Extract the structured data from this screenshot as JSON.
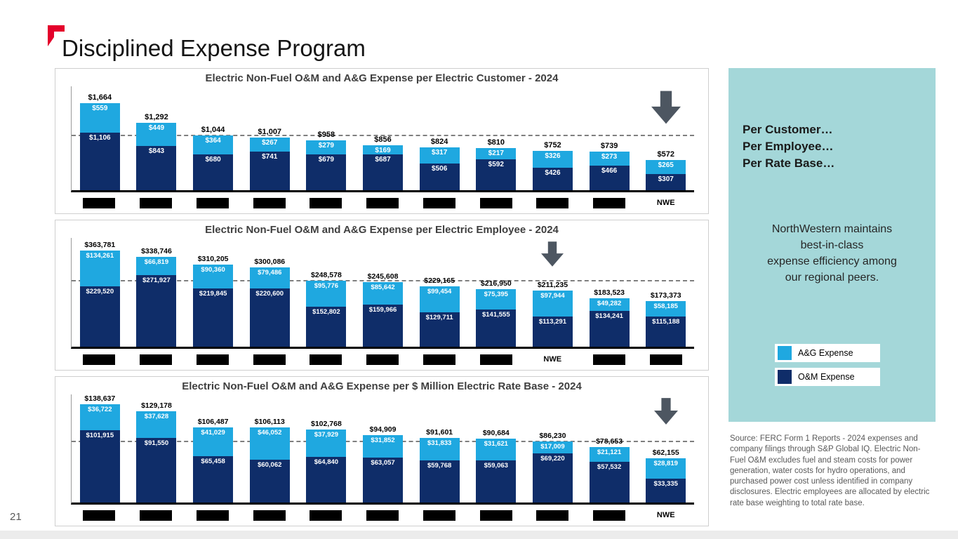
{
  "page": {
    "title": "Disciplined Expense Program",
    "slide_number": "21"
  },
  "sidebar": {
    "headline_lines": [
      "Per Customer…",
      "Per Employee…",
      "Per Rate Base…"
    ],
    "body_lines": [
      "NorthWestern maintains",
      "best-in-class",
      "expense efficiency among",
      "our regional peers."
    ],
    "legend": [
      {
        "label": "A&G Expense",
        "color_key": "ag"
      },
      {
        "label": "O&M Expense",
        "color_key": "om"
      }
    ]
  },
  "source_note": "Source:  FERC Form 1 Reports - 2024 expenses and company filings through S&P Global IQ. Electric Non-Fuel O&M excludes fuel and steam costs for power generation, water costs for hydro operations, and purchased power cost unless identified in company disclosures. Electric employees are allocated by electric rate base weighting to total rate base.",
  "colors": {
    "ag": "#1fa8e0",
    "om": "#0f2d69",
    "arrow": "#4d5661",
    "dashed": "#7f7f7f",
    "sidebar_bg": "#a4d7d9",
    "accent_red": "#e4002b"
  },
  "chart_data": [
    {
      "type": "bar",
      "stacked": true,
      "title": "Electric Non-Fuel O&M and A&G Expense per Electric Customer - 2024",
      "ylim": [
        0,
        1664
      ],
      "dashed_line_value": 1040,
      "arrow_index": 10,
      "categories": [
        "",
        "",
        "",
        "",
        "",
        "",
        "",
        "",
        "",
        "",
        "NWE"
      ],
      "series": [
        {
          "name": "O&M Expense",
          "values": [
            1106,
            843,
            680,
            741,
            679,
            687,
            506,
            592,
            426,
            466,
            307
          ]
        },
        {
          "name": "A&G Expense",
          "values": [
            559,
            449,
            364,
            267,
            279,
            169,
            317,
            217,
            326,
            273,
            265
          ]
        }
      ],
      "totals": [
        1664,
        1292,
        1044,
        1007,
        958,
        856,
        824,
        810,
        752,
        739,
        572
      ]
    },
    {
      "type": "bar",
      "stacked": true,
      "title": "Electric Non-Fuel O&M and A&G Expense per Electric Employee - 2024",
      "ylim": [
        0,
        363781
      ],
      "dashed_line_value": 246500,
      "arrow_index": 8,
      "categories": [
        "",
        "",
        "",
        "",
        "",
        "",
        "",
        "",
        "NWE",
        "",
        ""
      ],
      "series": [
        {
          "name": "O&M Expense",
          "values": [
            229520,
            271927,
            219845,
            220600,
            152802,
            159966,
            129711,
            141555,
            113291,
            134241,
            115188
          ]
        },
        {
          "name": "A&G Expense",
          "values": [
            134261,
            66819,
            90360,
            79486,
            95776,
            85642,
            99454,
            75395,
            97944,
            49282,
            58185
          ]
        }
      ],
      "totals": [
        363781,
        338746,
        310205,
        300086,
        248578,
        245608,
        229165,
        216950,
        211235,
        183523,
        173373
      ]
    },
    {
      "type": "bar",
      "stacked": true,
      "title": "Electric Non-Fuel O&M and A&G Expense per $ Million Electric Rate Base - 2024",
      "ylim": [
        0,
        138637
      ],
      "dashed_line_value": 85500,
      "arrow_index": 10,
      "categories": [
        "",
        "",
        "",
        "",
        "",
        "",
        "",
        "",
        "",
        "",
        "NWE"
      ],
      "series": [
        {
          "name": "O&M Expense",
          "values": [
            101915,
            91550,
            65458,
            60062,
            64840,
            63057,
            59768,
            59063,
            69220,
            57532,
            33335
          ]
        },
        {
          "name": "A&G Expense",
          "values": [
            36722,
            37628,
            41029,
            46052,
            37929,
            31852,
            31833,
            31621,
            17009,
            21121,
            28819
          ]
        }
      ],
      "totals": [
        138637,
        129178,
        106487,
        106113,
        102768,
        94909,
        91601,
        90684,
        86230,
        78653,
        62155
      ]
    }
  ]
}
